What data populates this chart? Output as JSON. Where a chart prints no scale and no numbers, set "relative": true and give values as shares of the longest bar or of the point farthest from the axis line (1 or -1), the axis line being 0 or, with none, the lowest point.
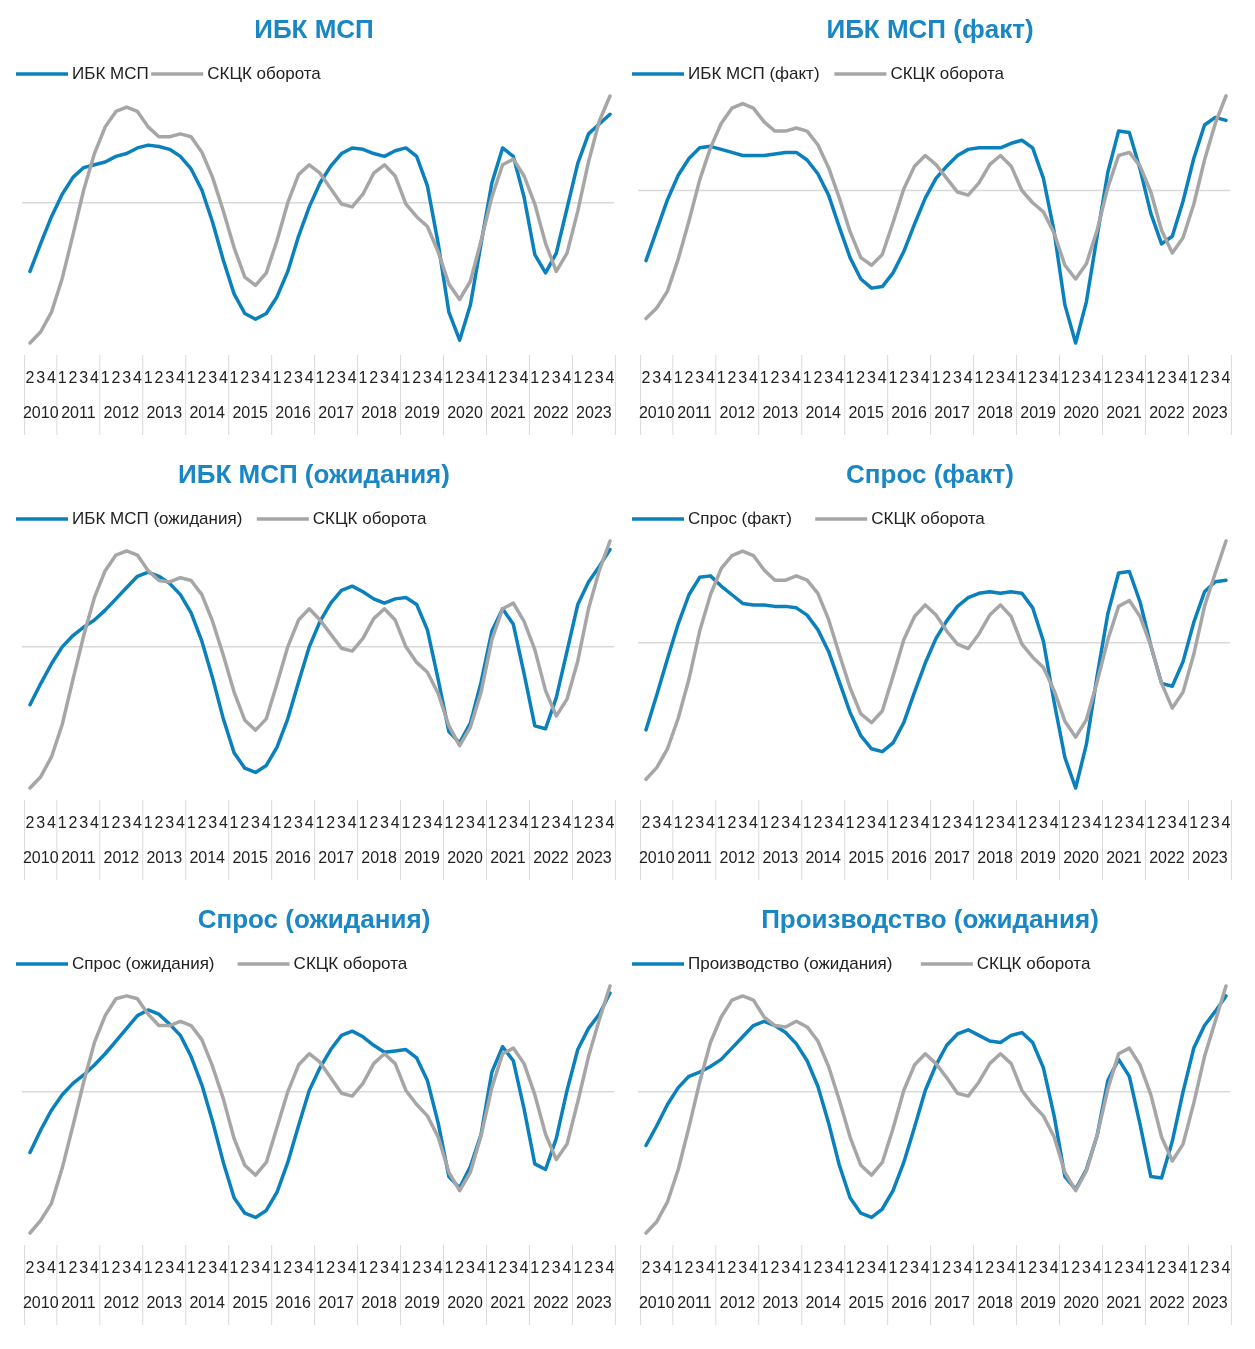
{
  "chart_data": [
    {
      "type": "line",
      "title": "ИБК МСП",
      "relative": true,
      "legend": "top",
      "categories": [
        "2",
        "3",
        "4",
        "1",
        "2",
        "3",
        "4",
        "1",
        "2",
        "3",
        "4",
        "1",
        "2",
        "3",
        "4",
        "1",
        "2",
        "3",
        "4",
        "1",
        "2",
        "3",
        "4",
        "1",
        "2",
        "3",
        "4",
        "1",
        "2",
        "3",
        "4",
        "1",
        "2",
        "3",
        "4",
        "1",
        "2",
        "3",
        "4",
        "1",
        "2",
        "3",
        "4",
        "1",
        "2",
        "3",
        "4",
        "1",
        "2",
        "3",
        "4",
        "1",
        "2",
        "3",
        "4"
      ],
      "annotations": [
        "2010",
        "2011",
        "2012",
        "2013",
        "2014",
        "2015",
        "2016",
        "2017",
        "2018",
        "2019",
        "2020",
        "2021",
        "2022",
        "2023"
      ],
      "series": [
        {
          "name": "ИБК МСП",
          "color": "#0a80bd",
          "values": [
            -0.49,
            -0.29,
            -0.1,
            0.06,
            0.18,
            0.25,
            0.27,
            0.29,
            0.33,
            0.35,
            0.39,
            0.41,
            0.4,
            0.38,
            0.33,
            0.24,
            0.09,
            -0.14,
            -0.41,
            -0.65,
            -0.79,
            -0.83,
            -0.79,
            -0.67,
            -0.49,
            -0.24,
            -0.03,
            0.14,
            0.26,
            0.35,
            0.39,
            0.38,
            0.35,
            0.33,
            0.37,
            0.39,
            0.33,
            0.12,
            -0.29,
            -0.78,
            -0.98,
            -0.73,
            -0.29,
            0.14,
            0.39,
            0.33,
            0.04,
            -0.37,
            -0.5,
            -0.36,
            -0.04,
            0.28,
            0.49,
            0.56,
            0.63
          ]
        },
        {
          "name": "СКЦК оборота",
          "color": "#a6a6a6",
          "values": [
            -1.0,
            -0.92,
            -0.78,
            -0.54,
            -0.23,
            0.09,
            0.35,
            0.54,
            0.65,
            0.68,
            0.65,
            0.54,
            0.47,
            0.47,
            0.49,
            0.47,
            0.36,
            0.18,
            -0.06,
            -0.32,
            -0.53,
            -0.59,
            -0.5,
            -0.27,
            0,
            0.2,
            0.27,
            0.21,
            0.1,
            -0.01,
            -0.03,
            0.06,
            0.21,
            0.27,
            0.19,
            -0.01,
            -0.1,
            -0.17,
            -0.35,
            -0.58,
            -0.69,
            -0.56,
            -0.27,
            0.04,
            0.27,
            0.31,
            0.19,
            -0.01,
            -0.29,
            -0.49,
            -0.36,
            -0.06,
            0.29,
            0.58,
            0.76
          ]
        }
      ]
    },
    {
      "type": "line",
      "title": "ИБК МСП (факт)",
      "relative": true,
      "legend": "top",
      "categories": [
        "2",
        "3",
        "4",
        "1",
        "2",
        "3",
        "4",
        "1",
        "2",
        "3",
        "4",
        "1",
        "2",
        "3",
        "4",
        "1",
        "2",
        "3",
        "4",
        "1",
        "2",
        "3",
        "4",
        "1",
        "2",
        "3",
        "4",
        "1",
        "2",
        "3",
        "4",
        "1",
        "2",
        "3",
        "4",
        "1",
        "2",
        "3",
        "4",
        "1",
        "2",
        "3",
        "4",
        "1",
        "2",
        "3",
        "4",
        "1",
        "2",
        "3",
        "4",
        "1",
        "2",
        "3",
        "4"
      ],
      "annotations": [
        "2010",
        "2011",
        "2012",
        "2013",
        "2014",
        "2015",
        "2016",
        "2017",
        "2018",
        "2019",
        "2020",
        "2021",
        "2022",
        "2023"
      ],
      "series": [
        {
          "name": "ИБК МСП (факт)",
          "color": "#0a80bd",
          "values": [
            -0.46,
            -0.26,
            -0.06,
            0.1,
            0.21,
            0.28,
            0.29,
            0.27,
            0.25,
            0.23,
            0.23,
            0.23,
            0.24,
            0.25,
            0.25,
            0.2,
            0.11,
            -0.03,
            -0.24,
            -0.44,
            -0.58,
            -0.64,
            -0.63,
            -0.54,
            -0.4,
            -0.22,
            -0.05,
            0.08,
            0.16,
            0.23,
            0.27,
            0.28,
            0.28,
            0.28,
            0.31,
            0.33,
            0.28,
            0.08,
            -0.27,
            -0.75,
            -1.0,
            -0.73,
            -0.3,
            0.12,
            0.39,
            0.38,
            0.14,
            -0.15,
            -0.35,
            -0.3,
            -0.07,
            0.21,
            0.43,
            0.48,
            0.46
          ]
        },
        {
          "name": "СКЦК оборота",
          "color": "#a6a6a6",
          "values": [
            -0.84,
            -0.77,
            -0.66,
            -0.45,
            -0.2,
            0.07,
            0.28,
            0.44,
            0.54,
            0.57,
            0.54,
            0.45,
            0.39,
            0.39,
            0.41,
            0.39,
            0.3,
            0.15,
            -0.05,
            -0.27,
            -0.44,
            -0.49,
            -0.42,
            -0.21,
            0.01,
            0.16,
            0.23,
            0.17,
            0.08,
            -0.01,
            -0.03,
            0.05,
            0.17,
            0.23,
            0.16,
            0,
            -0.08,
            -0.14,
            -0.28,
            -0.49,
            -0.58,
            -0.48,
            -0.26,
            0.02,
            0.23,
            0.25,
            0.16,
            -0.01,
            -0.26,
            -0.41,
            -0.31,
            -0.09,
            0.2,
            0.44,
            0.62
          ]
        }
      ]
    },
    {
      "type": "line",
      "title": "ИБК МСП (ожидания)",
      "relative": true,
      "legend": "top",
      "categories": [
        "2",
        "3",
        "4",
        "1",
        "2",
        "3",
        "4",
        "1",
        "2",
        "3",
        "4",
        "1",
        "2",
        "3",
        "4",
        "1",
        "2",
        "3",
        "4",
        "1",
        "2",
        "3",
        "4",
        "1",
        "2",
        "3",
        "4",
        "1",
        "2",
        "3",
        "4",
        "1",
        "2",
        "3",
        "4",
        "1",
        "2",
        "3",
        "4",
        "1",
        "2",
        "3",
        "4",
        "1",
        "2",
        "3",
        "4",
        "1",
        "2",
        "3",
        "4",
        "1",
        "2",
        "3",
        "4"
      ],
      "annotations": [
        "2010",
        "2011",
        "2012",
        "2013",
        "2014",
        "2015",
        "2016",
        "2017",
        "2018",
        "2019",
        "2020",
        "2021",
        "2022",
        "2023"
      ],
      "series": [
        {
          "name": "ИБК МСП (ожидания)",
          "color": "#0a80bd",
          "values": [
            -0.41,
            -0.26,
            -0.12,
            0,
            0.08,
            0.14,
            0.19,
            0.26,
            0.34,
            0.42,
            0.5,
            0.53,
            0.5,
            0.45,
            0.37,
            0.24,
            0.04,
            -0.22,
            -0.51,
            -0.75,
            -0.86,
            -0.89,
            -0.84,
            -0.71,
            -0.51,
            -0.25,
            0,
            0.18,
            0.31,
            0.4,
            0.43,
            0.39,
            0.34,
            0.31,
            0.34,
            0.35,
            0.3,
            0.12,
            -0.23,
            -0.6,
            -0.68,
            -0.54,
            -0.25,
            0.11,
            0.27,
            0.16,
            -0.19,
            -0.56,
            -0.58,
            -0.36,
            -0.03,
            0.3,
            0.46,
            0.57,
            0.69
          ]
        },
        {
          "name": "СКЦК оборота",
          "color": "#a6a6a6",
          "values": [
            -1.0,
            -0.92,
            -0.78,
            -0.55,
            -0.23,
            0.08,
            0.35,
            0.54,
            0.65,
            0.68,
            0.65,
            0.54,
            0.47,
            0.46,
            0.49,
            0.47,
            0.37,
            0.18,
            -0.06,
            -0.32,
            -0.52,
            -0.59,
            -0.51,
            -0.26,
            0,
            0.19,
            0.27,
            0.19,
            0.09,
            -0.01,
            -0.03,
            0.06,
            0.2,
            0.27,
            0.19,
            0,
            -0.11,
            -0.18,
            -0.33,
            -0.56,
            -0.7,
            -0.57,
            -0.32,
            0.05,
            0.27,
            0.31,
            0.18,
            -0.02,
            -0.31,
            -0.49,
            -0.37,
            -0.1,
            0.27,
            0.54,
            0.75
          ]
        }
      ]
    },
    {
      "type": "line",
      "title": "Спрос (факт)",
      "relative": true,
      "legend": "top",
      "categories": [
        "2",
        "3",
        "4",
        "1",
        "2",
        "3",
        "4",
        "1",
        "2",
        "3",
        "4",
        "1",
        "2",
        "3",
        "4",
        "1",
        "2",
        "3",
        "4",
        "1",
        "2",
        "3",
        "4",
        "1",
        "2",
        "3",
        "4",
        "1",
        "2",
        "3",
        "4",
        "1",
        "2",
        "3",
        "4",
        "1",
        "2",
        "3",
        "4",
        "1",
        "2",
        "3",
        "4",
        "1",
        "2",
        "3",
        "4",
        "1",
        "2",
        "3",
        "4",
        "1",
        "2",
        "3",
        "4"
      ],
      "annotations": [
        "2010",
        "2011",
        "2012",
        "2013",
        "2014",
        "2015",
        "2016",
        "2017",
        "2018",
        "2019",
        "2020",
        "2021",
        "2022",
        "2023"
      ],
      "series": [
        {
          "name": "Спрос (факт)",
          "color": "#0a80bd",
          "values": [
            -0.6,
            -0.36,
            -0.11,
            0.13,
            0.33,
            0.45,
            0.46,
            0.39,
            0.33,
            0.27,
            0.26,
            0.26,
            0.25,
            0.25,
            0.24,
            0.19,
            0.09,
            -0.06,
            -0.27,
            -0.48,
            -0.64,
            -0.73,
            -0.75,
            -0.69,
            -0.55,
            -0.34,
            -0.14,
            0.03,
            0.15,
            0.25,
            0.31,
            0.34,
            0.35,
            0.34,
            0.35,
            0.34,
            0.24,
            0.01,
            -0.41,
            -0.79,
            -1.0,
            -0.7,
            -0.23,
            0.2,
            0.48,
            0.49,
            0.28,
            -0.02,
            -0.28,
            -0.3,
            -0.13,
            0.14,
            0.35,
            0.42,
            0.43
          ]
        },
        {
          "name": "СКЦК оборота",
          "color": "#a6a6a6",
          "values": [
            -0.94,
            -0.86,
            -0.73,
            -0.52,
            -0.25,
            0.08,
            0.33,
            0.51,
            0.6,
            0.63,
            0.6,
            0.5,
            0.43,
            0.43,
            0.46,
            0.43,
            0.34,
            0.16,
            -0.08,
            -0.31,
            -0.49,
            -0.55,
            -0.47,
            -0.23,
            0.02,
            0.18,
            0.26,
            0.19,
            0.08,
            -0.01,
            -0.04,
            0.06,
            0.19,
            0.26,
            0.18,
            -0.01,
            -0.1,
            -0.17,
            -0.33,
            -0.54,
            -0.65,
            -0.53,
            -0.27,
            0.02,
            0.25,
            0.29,
            0.18,
            -0.02,
            -0.28,
            -0.45,
            -0.34,
            -0.08,
            0.25,
            0.48,
            0.7
          ]
        }
      ]
    },
    {
      "type": "line",
      "title": "Спрос (ожидания)",
      "relative": true,
      "legend": "top",
      "categories": [
        "2",
        "3",
        "4",
        "1",
        "2",
        "3",
        "4",
        "1",
        "2",
        "3",
        "4",
        "1",
        "2",
        "3",
        "4",
        "1",
        "2",
        "3",
        "4",
        "1",
        "2",
        "3",
        "4",
        "1",
        "2",
        "3",
        "4",
        "1",
        "2",
        "3",
        "4",
        "1",
        "2",
        "3",
        "4",
        "1",
        "2",
        "3",
        "4",
        "1",
        "2",
        "3",
        "4",
        "1",
        "2",
        "3",
        "4",
        "1",
        "2",
        "3",
        "4",
        "1",
        "2",
        "3",
        "4"
      ],
      "annotations": [
        "2010",
        "2011",
        "2012",
        "2013",
        "2014",
        "2015",
        "2016",
        "2017",
        "2018",
        "2019",
        "2020",
        "2021",
        "2022",
        "2023"
      ],
      "series": [
        {
          "name": "Спрос (ожидания)",
          "color": "#0a80bd",
          "values": [
            -0.43,
            -0.27,
            -0.13,
            -0.02,
            0.06,
            0.12,
            0.19,
            0.27,
            0.36,
            0.45,
            0.54,
            0.58,
            0.55,
            0.48,
            0.4,
            0.25,
            0.05,
            -0.21,
            -0.5,
            -0.75,
            -0.86,
            -0.89,
            -0.84,
            -0.71,
            -0.5,
            -0.24,
            0.01,
            0.17,
            0.3,
            0.4,
            0.43,
            0.39,
            0.33,
            0.28,
            0.29,
            0.3,
            0.24,
            0.08,
            -0.22,
            -0.6,
            -0.68,
            -0.53,
            -0.3,
            0.14,
            0.32,
            0.22,
            -0.12,
            -0.51,
            -0.55,
            -0.33,
            0.01,
            0.3,
            0.45,
            0.55,
            0.7
          ]
        },
        {
          "name": "СКЦК оборота",
          "color": "#a6a6a6",
          "values": [
            -1.0,
            -0.91,
            -0.79,
            -0.54,
            -0.24,
            0.07,
            0.35,
            0.54,
            0.66,
            0.68,
            0.66,
            0.55,
            0.47,
            0.47,
            0.5,
            0.47,
            0.37,
            0.18,
            -0.05,
            -0.33,
            -0.52,
            -0.59,
            -0.5,
            -0.25,
            0,
            0.19,
            0.27,
            0.21,
            0.1,
            -0.01,
            -0.03,
            0.06,
            0.2,
            0.27,
            0.2,
            0.01,
            -0.09,
            -0.17,
            -0.32,
            -0.57,
            -0.7,
            -0.57,
            -0.31,
            0.03,
            0.27,
            0.31,
            0.2,
            -0.02,
            -0.3,
            -0.48,
            -0.37,
            -0.07,
            0.25,
            0.51,
            0.75
          ]
        }
      ]
    },
    {
      "type": "line",
      "title": "Производство (ожидания)",
      "relative": true,
      "legend": "top",
      "categories": [
        "2",
        "3",
        "4",
        "1",
        "2",
        "3",
        "4",
        "1",
        "2",
        "3",
        "4",
        "1",
        "2",
        "3",
        "4",
        "1",
        "2",
        "3",
        "4",
        "1",
        "2",
        "3",
        "4",
        "1",
        "2",
        "3",
        "4",
        "1",
        "2",
        "3",
        "4",
        "1",
        "2",
        "3",
        "4",
        "1",
        "2",
        "3",
        "4",
        "1",
        "2",
        "3",
        "4",
        "1",
        "2",
        "3",
        "4",
        "1",
        "2",
        "3",
        "4",
        "1",
        "2",
        "3",
        "4"
      ],
      "annotations": [
        "2010",
        "2011",
        "2012",
        "2013",
        "2014",
        "2015",
        "2016",
        "2017",
        "2018",
        "2019",
        "2020",
        "2021",
        "2022",
        "2023"
      ],
      "series": [
        {
          "name": "Производство (ожидания)",
          "color": "#0a80bd",
          "values": [
            -0.38,
            -0.24,
            -0.09,
            0.03,
            0.11,
            0.14,
            0.18,
            0.23,
            0.31,
            0.39,
            0.47,
            0.5,
            0.47,
            0.42,
            0.34,
            0.22,
            0.04,
            -0.22,
            -0.52,
            -0.75,
            -0.86,
            -0.89,
            -0.83,
            -0.7,
            -0.5,
            -0.25,
            0.01,
            0.19,
            0.33,
            0.41,
            0.44,
            0.4,
            0.36,
            0.35,
            0.4,
            0.42,
            0.35,
            0.17,
            -0.17,
            -0.6,
            -0.69,
            -0.55,
            -0.31,
            0.08,
            0.23,
            0.11,
            -0.23,
            -0.6,
            -0.61,
            -0.35,
            0,
            0.31,
            0.47,
            0.57,
            0.68
          ]
        },
        {
          "name": "СКЦК оборота",
          "color": "#a6a6a6",
          "values": [
            -1.0,
            -0.92,
            -0.78,
            -0.55,
            -0.25,
            0.07,
            0.35,
            0.53,
            0.65,
            0.68,
            0.65,
            0.53,
            0.47,
            0.46,
            0.5,
            0.46,
            0.36,
            0.18,
            -0.06,
            -0.32,
            -0.52,
            -0.59,
            -0.5,
            -0.26,
            0.01,
            0.19,
            0.27,
            0.2,
            0.1,
            -0.01,
            -0.03,
            0.07,
            0.2,
            0.27,
            0.2,
            0.01,
            -0.09,
            -0.17,
            -0.32,
            -0.57,
            -0.7,
            -0.56,
            -0.31,
            0.02,
            0.27,
            0.31,
            0.19,
            -0.02,
            -0.32,
            -0.49,
            -0.37,
            -0.08,
            0.25,
            0.5,
            0.75
          ]
        }
      ]
    }
  ]
}
